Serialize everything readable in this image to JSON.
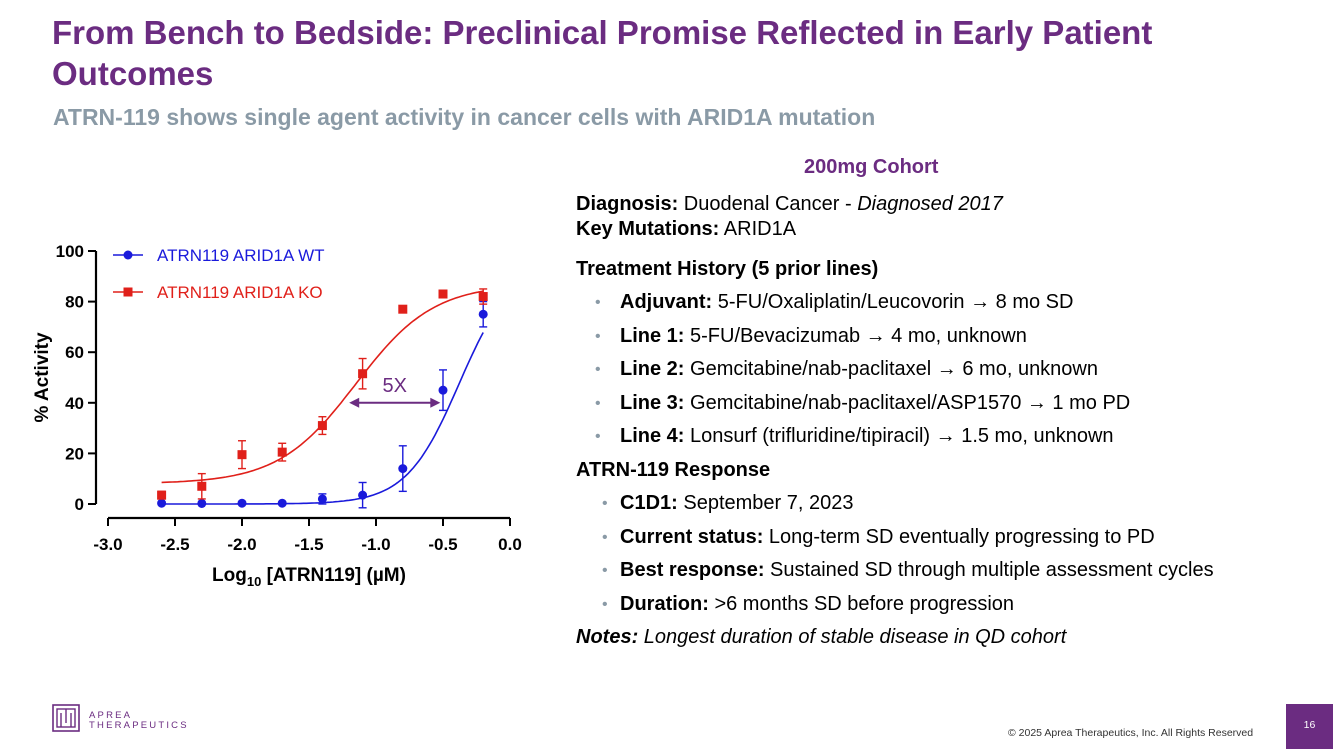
{
  "slide": {
    "title": "From Bench to Bedside: Preclinical Promise Reflected in Early Patient Outcomes",
    "subtitle": "ATRN-119 shows single agent activity in cancer cells with ARID1A mutation"
  },
  "chart_data": {
    "type": "scatter",
    "xlabel_main": "Log",
    "xlabel_sub": "10",
    "xlabel_rest": " [ATRN119] (µM)",
    "ylabel": "% Activity",
    "xlim": [
      -3.0,
      0.0
    ],
    "ylim": [
      0,
      100
    ],
    "x_ticks": [
      -3.0,
      -2.5,
      -2.0,
      -1.5,
      -1.0,
      -0.5,
      0.0
    ],
    "x_tick_labels": [
      "-3.0",
      "-2.5",
      "-2.0",
      "-1.5",
      "-1.0",
      "-0.5",
      "0.0"
    ],
    "y_ticks": [
      0,
      20,
      40,
      60,
      80,
      100
    ],
    "y_tick_labels": [
      "0",
      "20",
      "40",
      "60",
      "80",
      "100"
    ],
    "legend_position": "top-left",
    "annotation": {
      "label": "5X",
      "x_from": -1.2,
      "x_to": -0.52,
      "y": 40
    },
    "series": [
      {
        "name": "ATRN119 ARID1A WT",
        "color": "#1a1adb",
        "marker": "circle",
        "x": [
          -2.6,
          -2.3,
          -2.0,
          -1.7,
          -1.4,
          -1.1,
          -0.8,
          -0.5,
          -0.2
        ],
        "y": [
          0.3,
          0.2,
          0.3,
          0.3,
          2,
          3.5,
          14,
          45,
          75
        ],
        "err": [
          0,
          0,
          0,
          0,
          2,
          5,
          9,
          8,
          5
        ],
        "fit": {
          "bottom": 0,
          "top": 95,
          "logec50": -0.38,
          "hill": 2.2
        }
      },
      {
        "name": "ATRN119 ARID1A KO",
        "color": "#e0201a",
        "marker": "square",
        "x": [
          -2.6,
          -2.3,
          -2.0,
          -1.7,
          -1.4,
          -1.1,
          -0.8,
          -0.5,
          -0.2
        ],
        "y": [
          3.5,
          7,
          19.5,
          20.5,
          31,
          51.5,
          77,
          83,
          82
        ],
        "err": [
          1.5,
          5,
          5.5,
          3.5,
          3.5,
          6,
          0,
          1.5,
          3
        ],
        "fit": {
          "bottom": 8,
          "top": 87,
          "logec50": -1.15,
          "hill": 1.5
        }
      }
    ]
  },
  "cohort": {
    "heading": "200mg Cohort",
    "diagnosis_label": "Diagnosis:",
    "diagnosis_value": " Duodenal Cancer - ",
    "diagnosis_year": "Diagnosed 2017",
    "mutations_label": "Key Mutations:",
    "mutations_value": " ARID1A",
    "treatment_heading": "Treatment History (5 prior lines)",
    "treatments": [
      {
        "label": "Adjuvant:",
        "text": " 5-FU/Oxaliplatin/Leucovorin → 8 mo SD"
      },
      {
        "label": "Line 1:",
        "text": " 5-FU/Bevacizumab → 4 mo, unknown"
      },
      {
        "label": "Line 2:",
        "text": " Gemcitabine/nab-paclitaxel → 6 mo, unknown"
      },
      {
        "label": "Line 3:",
        "text": " Gemcitabine/nab-paclitaxel/ASP1570 → 1 mo PD"
      },
      {
        "label": "Line 4:",
        "text": " Lonsurf (trifluridine/tipiracil) → 1.5 mo, unknown"
      }
    ],
    "response_heading": "ATRN-119 Response",
    "responses": [
      {
        "label": "C1D1:",
        "text": " September 7, 2023"
      },
      {
        "label": "Current status:",
        "text": " Long-term SD eventually progressing to PD"
      },
      {
        "label": "Best response:",
        "text": " Sustained SD through multiple assessment cycles"
      },
      {
        "label": "Duration:",
        "text": " >6 months SD before progression"
      }
    ],
    "notes_label": "Notes:",
    "notes_text": " Longest duration of stable disease in QD cohort"
  },
  "footer": {
    "logo_line1": "APREA",
    "logo_line2": "THERAPEUTICS",
    "copyright": "© 2025 Aprea Therapeutics, Inc. All Rights Reserved",
    "page_number": "16"
  },
  "colors": {
    "brand": "#6b2c81",
    "subtitle": "#8a9aa6"
  }
}
